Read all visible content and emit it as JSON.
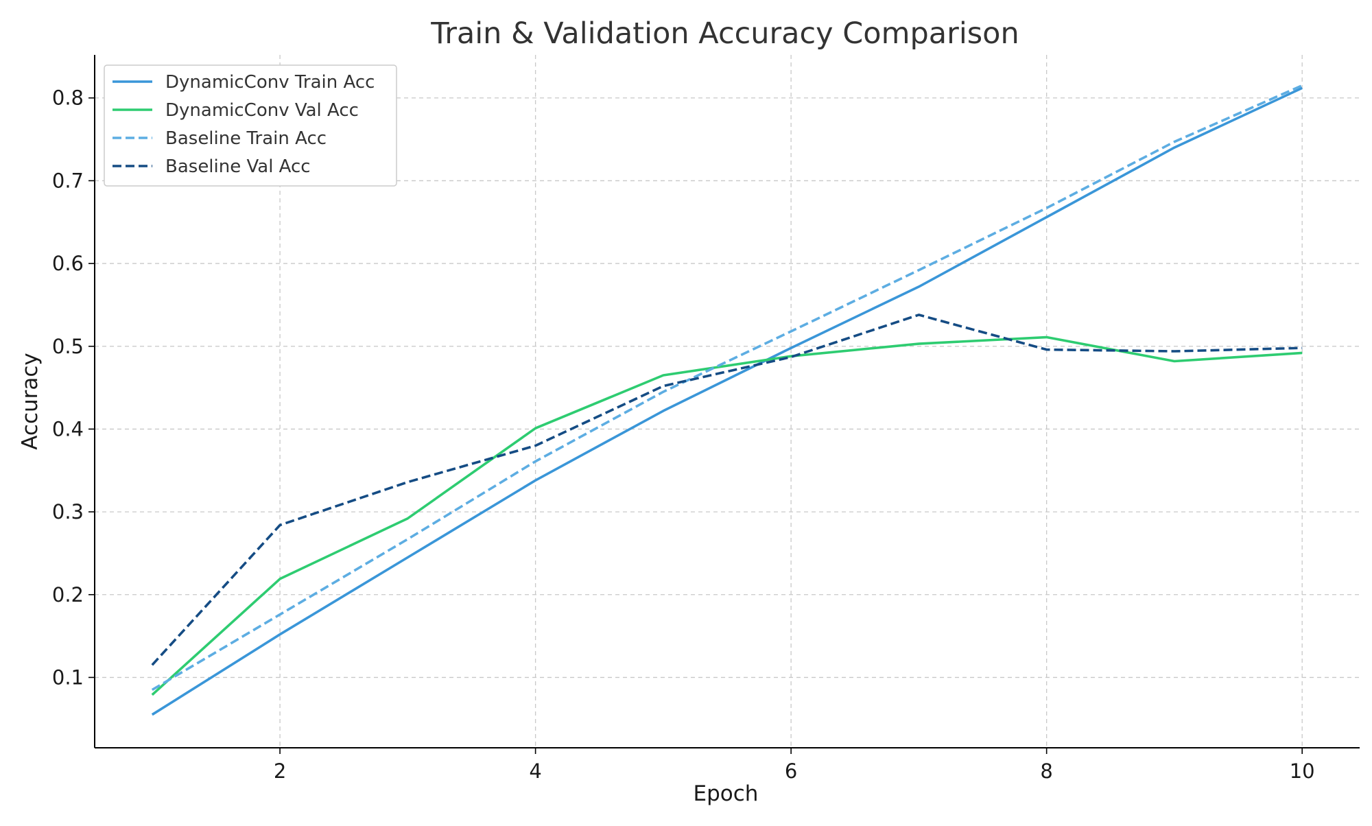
{
  "chart_data": {
    "type": "line",
    "title": "Train & Validation Accuracy Comparison",
    "xlabel": "Epoch",
    "ylabel": "Accuracy",
    "x": [
      1,
      2,
      3,
      4,
      5,
      6,
      7,
      8,
      9,
      10
    ],
    "xlim": [
      0.55,
      10.45
    ],
    "ylim": [
      0.015,
      0.852
    ],
    "xticks": [
      2,
      4,
      6,
      8,
      10
    ],
    "yticks": [
      0.1,
      0.2,
      0.3,
      0.4,
      0.5,
      0.6,
      0.7,
      0.8
    ],
    "xtick_labels": [
      "2",
      "4",
      "6",
      "8",
      "10"
    ],
    "ytick_labels": [
      "0.1",
      "0.2",
      "0.3",
      "0.4",
      "0.5",
      "0.6",
      "0.7",
      "0.8"
    ],
    "grid": true,
    "legend_position": "top-left",
    "series": [
      {
        "name": "DynamicConv Train Acc",
        "color": "#3a96d8",
        "style": "solid",
        "values": [
          0.055,
          0.152,
          0.245,
          0.338,
          0.422,
          0.498,
          0.572,
          0.656,
          0.74,
          0.812
        ]
      },
      {
        "name": "DynamicConv Val Acc",
        "color": "#2ecc71",
        "style": "solid",
        "values": [
          0.079,
          0.219,
          0.292,
          0.401,
          0.465,
          0.488,
          0.503,
          0.511,
          0.482,
          0.492
        ]
      },
      {
        "name": "Baseline Train Acc",
        "color": "#5dade2",
        "style": "dashed",
        "values": [
          0.085,
          0.176,
          0.267,
          0.361,
          0.445,
          0.518,
          0.592,
          0.667,
          0.747,
          0.815
        ]
      },
      {
        "name": "Baseline Val Acc",
        "color": "#154c84",
        "style": "dashed",
        "values": [
          0.115,
          0.284,
          0.336,
          0.38,
          0.452,
          0.487,
          0.538,
          0.496,
          0.494,
          0.498
        ]
      }
    ]
  }
}
